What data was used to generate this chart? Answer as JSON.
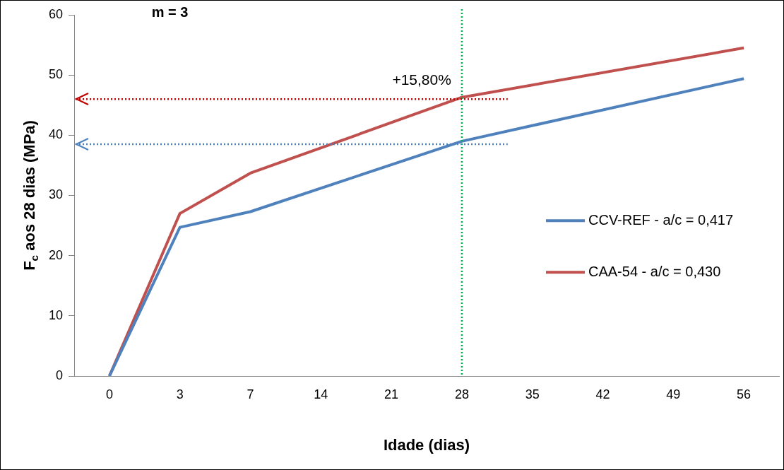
{
  "chart_data": {
    "type": "line",
    "xlabel": "Idade (dias)",
    "ylabel": "F$_{c}$ aos 28 dias (MPa)",
    "categories": [
      "0",
      "3",
      "7",
      "14",
      "21",
      "28",
      "35",
      "42",
      "49",
      "56"
    ],
    "series": [
      {
        "name": "CCV-REF - a/c = 0,417",
        "color": "#4f81bd",
        "values": [
          0,
          24.7,
          27.3,
          null,
          null,
          39.0,
          null,
          null,
          null,
          49.4
        ]
      },
      {
        "name": "CAA-54 - a/c = 0,430",
        "color": "#c0504d",
        "values": [
          0,
          27.0,
          33.7,
          null,
          null,
          46.3,
          null,
          null,
          null,
          54.5
        ]
      }
    ],
    "ylim": [
      0,
      60
    ],
    "yticks": [
      0,
      10,
      20,
      30,
      40,
      50,
      60
    ],
    "grid": false,
    "legend": "right",
    "marker": "none",
    "line_style": "solid",
    "ref_lines": [
      {
        "axis": "x",
        "value": "28",
        "color": "#00b050",
        "line_style": "dotted"
      },
      {
        "axis": "y",
        "value": 46,
        "color": "#c00000",
        "line_style": "dotted"
      },
      {
        "axis": "y",
        "value": 38.5,
        "color": "#4f81bd",
        "line_style": "dotted"
      }
    ],
    "annotations": [
      "m = 3",
      {
        "text": "+15,80%",
        "x": "28",
        "y": 49
      }
    ]
  }
}
